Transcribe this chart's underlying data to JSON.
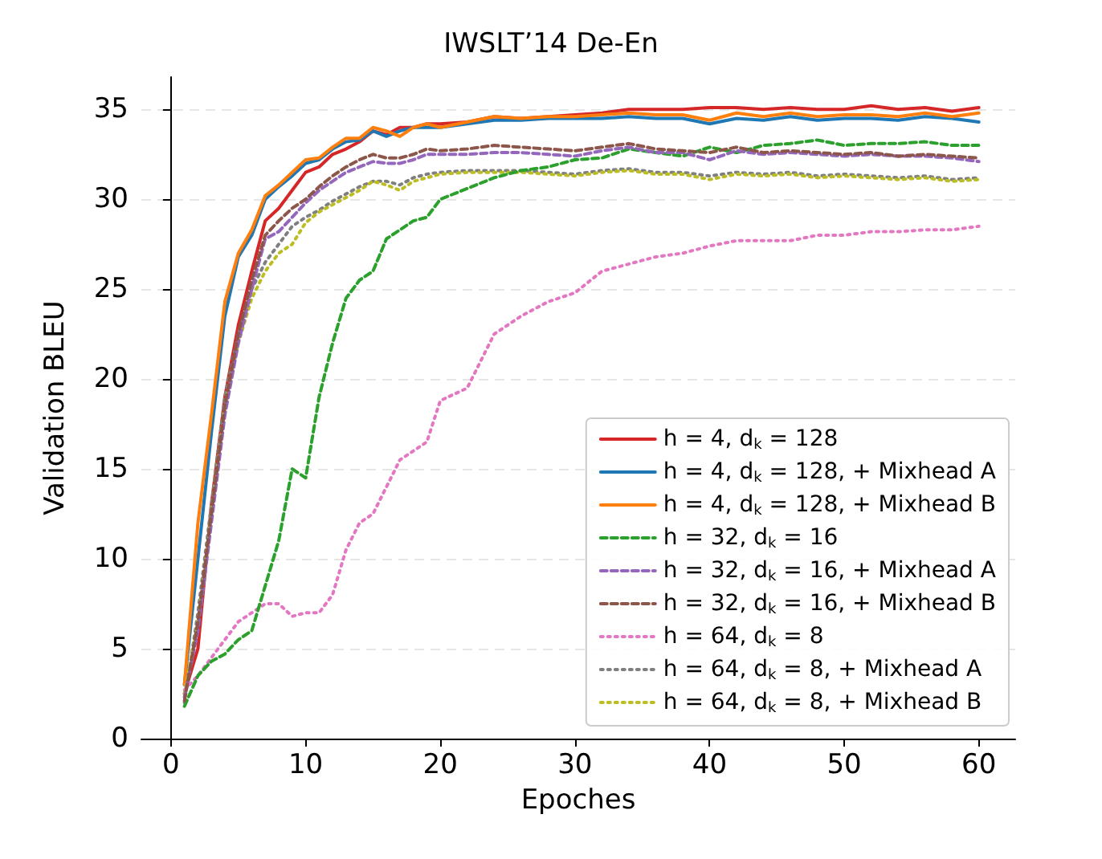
{
  "chart_data": {
    "type": "line",
    "title": "IWSLT’14 De-En",
    "xlabel": "Epoches",
    "ylabel": "Validation BLEU",
    "x": [
      1,
      2,
      3,
      4,
      5,
      6,
      7,
      8,
      9,
      10,
      11,
      12,
      13,
      14,
      15,
      16,
      17,
      18,
      19,
      20,
      22,
      24,
      26,
      28,
      30,
      32,
      34,
      36,
      38,
      40,
      42,
      44,
      46,
      48,
      50,
      52,
      54,
      56,
      58,
      60
    ],
    "xlim": [
      -2.2,
      62.7
    ],
    "xticks": [
      0,
      10,
      20,
      30,
      40,
      50,
      60
    ],
    "ylim": [
      0,
      36.8
    ],
    "yticks": [
      0,
      5,
      10,
      15,
      20,
      25,
      30,
      35
    ],
    "grid": "y",
    "legend": "bottom right",
    "marker": "none",
    "series": [
      {
        "name": "h = 4, d$_{k}$ = 128",
        "color": "#d62728",
        "line_style": "solid",
        "values": [
          2.5,
          5,
          13,
          19,
          23,
          26,
          28.8,
          29.5,
          30.5,
          31.5,
          31.8,
          32.5,
          32.8,
          33.2,
          33.8,
          33.6,
          34,
          34,
          34.2,
          34.2,
          34.3,
          34.6,
          34.5,
          34.6,
          34.7,
          34.8,
          35,
          35,
          35,
          35.1,
          35.1,
          35,
          35.1,
          35,
          35,
          35.2,
          35,
          35.1,
          34.9,
          35.1
        ]
      },
      {
        "name": "h = 4, d$_{k}$ = 128, + Mixhead A",
        "color": "#1f77b4",
        "line_style": "solid",
        "values": [
          3,
          10,
          17,
          23.5,
          26.8,
          28,
          30,
          30.7,
          31.3,
          32,
          32.2,
          32.8,
          33.2,
          33.3,
          33.8,
          33.5,
          33.8,
          34,
          34,
          34,
          34.2,
          34.4,
          34.4,
          34.5,
          34.5,
          34.5,
          34.6,
          34.5,
          34.5,
          34.2,
          34.5,
          34.4,
          34.6,
          34.4,
          34.5,
          34.5,
          34.4,
          34.6,
          34.5,
          34.3
        ]
      },
      {
        "name": "h = 4, d$_{k}$ = 128, + Mixhead B",
        "color": "#ff7f0e",
        "line_style": "solid",
        "values": [
          3,
          12,
          18,
          24.3,
          27,
          28.3,
          30.2,
          30.8,
          31.5,
          32.2,
          32.3,
          32.9,
          33.4,
          33.4,
          34,
          33.8,
          33.5,
          34,
          34.2,
          34,
          34.3,
          34.6,
          34.5,
          34.6,
          34.6,
          34.7,
          34.8,
          34.7,
          34.7,
          34.4,
          34.8,
          34.6,
          34.8,
          34.6,
          34.7,
          34.7,
          34.6,
          34.8,
          34.6,
          34.8
        ]
      },
      {
        "name": "h = 32, d$_{k}$ = 16",
        "color": "#2ca02c",
        "line_style": "dashed",
        "values": [
          1.8,
          3.5,
          4.3,
          4.7,
          5.5,
          6,
          8.5,
          11,
          15,
          14.5,
          19,
          22,
          24.5,
          25.5,
          26,
          27.8,
          28.3,
          28.8,
          29,
          30,
          30.6,
          31.2,
          31.6,
          31.8,
          32.2,
          32.3,
          32.8,
          32.6,
          32.4,
          32.9,
          32.6,
          33,
          33.1,
          33.3,
          33,
          33.1,
          33.1,
          33.2,
          33,
          33
        ]
      },
      {
        "name": "h = 32, d$_{k}$ = 16, + Mixhead A",
        "color": "#9467bd",
        "line_style": "dashed",
        "values": [
          2.3,
          6,
          12,
          18,
          22,
          25,
          27.8,
          28.2,
          29,
          29.8,
          30.5,
          31,
          31.5,
          31.8,
          32.1,
          32,
          32,
          32.2,
          32.5,
          32.5,
          32.5,
          32.6,
          32.6,
          32.5,
          32.4,
          32.7,
          32.9,
          32.6,
          32.6,
          32.2,
          32.7,
          32.5,
          32.6,
          32.5,
          32.4,
          32.5,
          32.4,
          32.4,
          32.3,
          32.1
        ]
      },
      {
        "name": "h = 32, d$_{k}$ = 16, + Mixhead B",
        "color": "#8c564b",
        "line_style": "dashed",
        "values": [
          2.1,
          6.5,
          12.5,
          18.5,
          22.5,
          25.5,
          28,
          28.8,
          29.5,
          30,
          30.7,
          31.3,
          31.8,
          32.2,
          32.5,
          32.3,
          32.3,
          32.5,
          32.8,
          32.7,
          32.8,
          33,
          32.9,
          32.8,
          32.7,
          32.9,
          33.1,
          32.8,
          32.7,
          32.6,
          32.9,
          32.6,
          32.7,
          32.6,
          32.5,
          32.6,
          32.4,
          32.5,
          32.4,
          32.3
        ]
      },
      {
        "name": "h = 64, d$_{k}$ = 8",
        "color": "#e377c2",
        "line_style": "dotted",
        "values": [
          2.7,
          3.5,
          4.5,
          5.5,
          6.5,
          7,
          7.5,
          7.5,
          6.8,
          7,
          7,
          8,
          10.5,
          12,
          12.5,
          14,
          15.5,
          16,
          16.5,
          18.8,
          19.5,
          22.5,
          23.5,
          24.3,
          24.8,
          26,
          26.4,
          26.8,
          27,
          27.4,
          27.7,
          27.7,
          27.7,
          28,
          28,
          28.2,
          28.2,
          28.3,
          28.3,
          28.5
        ]
      },
      {
        "name": "h = 64, d$_{k}$ = 8, + Mixhead A",
        "color": "#7f7f7f",
        "line_style": "dotted",
        "values": [
          2,
          7,
          13,
          19,
          22.5,
          25,
          26.5,
          27.5,
          28.5,
          29,
          29.4,
          29.9,
          30.3,
          30.7,
          31,
          31,
          30.8,
          31.2,
          31.4,
          31.5,
          31.6,
          31.6,
          31.6,
          31.5,
          31.4,
          31.6,
          31.7,
          31.5,
          31.5,
          31.3,
          31.5,
          31.4,
          31.5,
          31.3,
          31.4,
          31.3,
          31.2,
          31.3,
          31.1,
          31.2
        ]
      },
      {
        "name": "h = 64, d$_{k}$ = 8, + Mixhead B",
        "color": "#bcbd22",
        "line_style": "dotted",
        "values": [
          2.5,
          6.5,
          12.5,
          18.5,
          22,
          24.5,
          26,
          27,
          27.5,
          28.7,
          29.3,
          29.7,
          30.1,
          30.5,
          31,
          30.8,
          30.5,
          31,
          31.2,
          31.4,
          31.5,
          31.5,
          31.5,
          31.4,
          31.3,
          31.5,
          31.6,
          31.4,
          31.4,
          31.1,
          31.4,
          31.3,
          31.4,
          31.2,
          31.3,
          31.2,
          31.1,
          31.2,
          31,
          31.1
        ]
      }
    ]
  }
}
